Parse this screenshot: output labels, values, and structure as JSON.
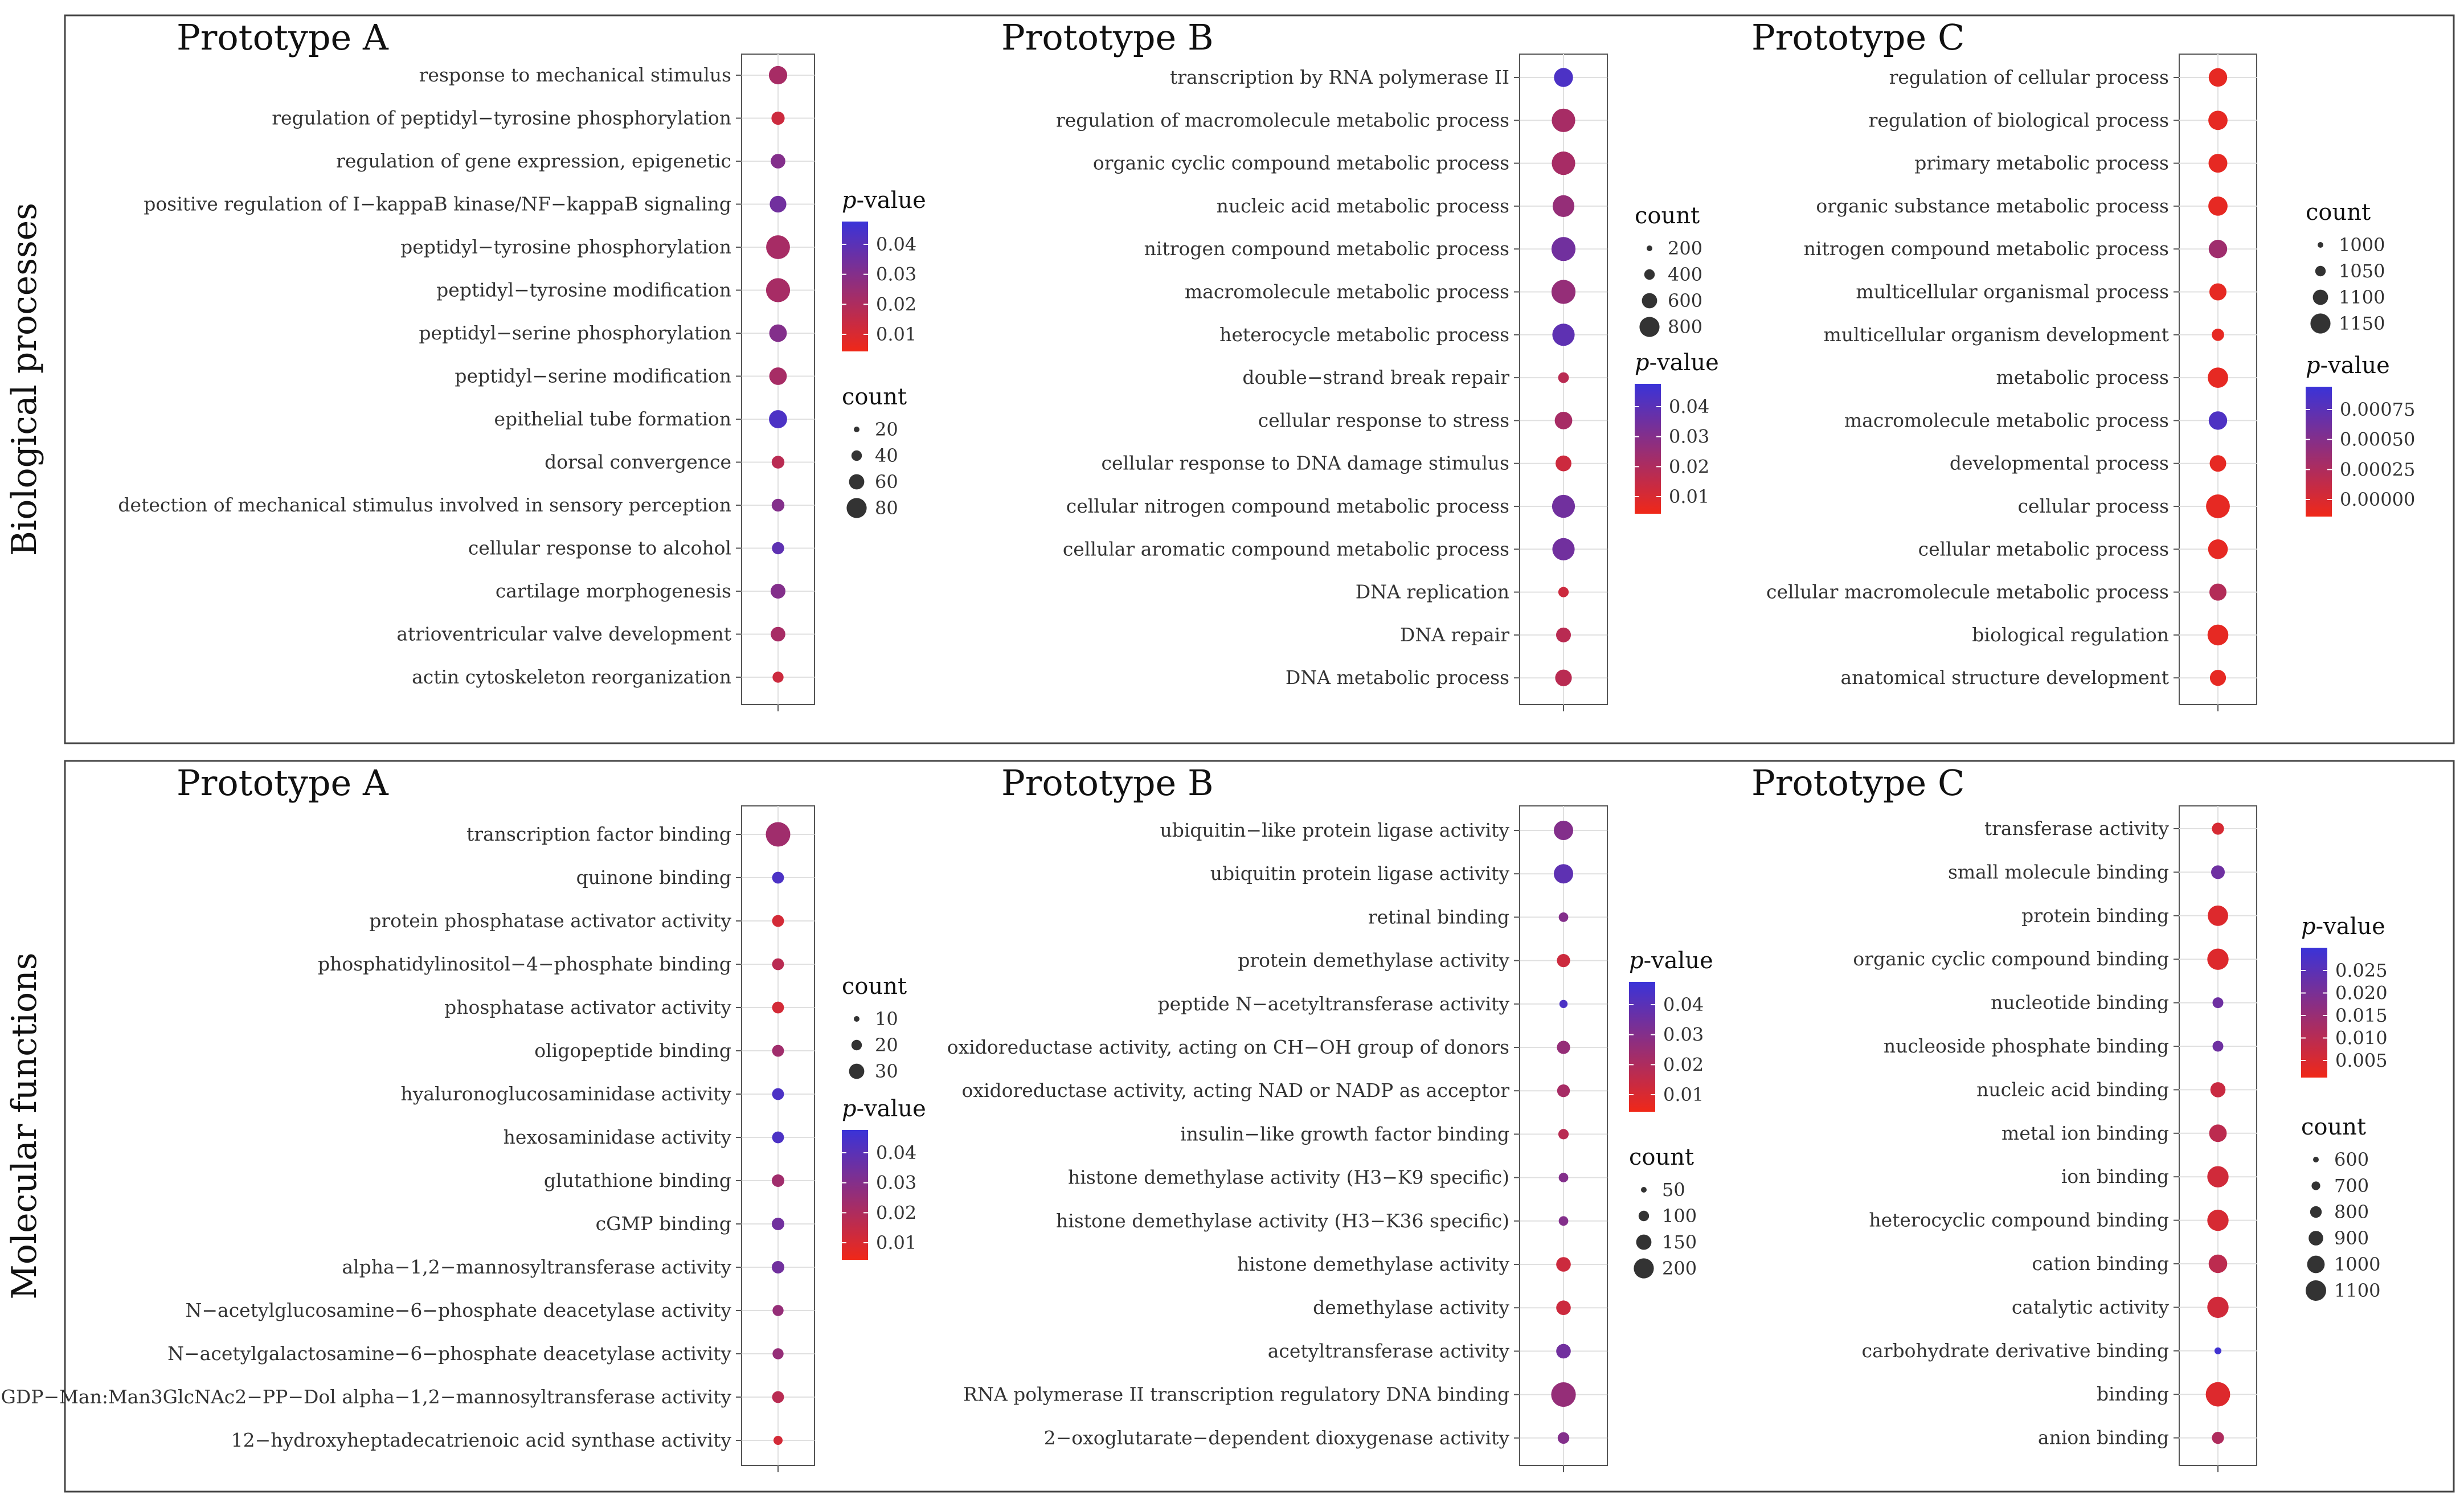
{
  "row_labels": [
    "Biological processes",
    "Molecular functions"
  ],
  "panels": [
    {
      "title": "Prototype A",
      "terms": [
        {
          "label": "response to mechanical stimulus",
          "p": 0.02,
          "count": 45
        },
        {
          "label": "regulation of peptidyl−tyrosine phosphorylation",
          "p": 0.01,
          "count": 18
        },
        {
          "label": "regulation of gene expression, epigenetic",
          "p": 0.03,
          "count": 24
        },
        {
          "label": "positive regulation of I−kappaB kinase/NF−kappaB signaling",
          "p": 0.035,
          "count": 35
        },
        {
          "label": "peptidyl−tyrosine phosphorylation",
          "p": 0.02,
          "count": 88
        },
        {
          "label": "peptidyl−tyrosine modification",
          "p": 0.02,
          "count": 90
        },
        {
          "label": "peptidyl−serine phosphorylation",
          "p": 0.03,
          "count": 40
        },
        {
          "label": "peptidyl−serine modification",
          "p": 0.02,
          "count": 40
        },
        {
          "label": "epithelial tube formation",
          "p": 0.045,
          "count": 44
        },
        {
          "label": "dorsal convergence",
          "p": 0.015,
          "count": 16
        },
        {
          "label": "detection of mechanical stimulus involved in sensory perception",
          "p": 0.03,
          "count": 16
        },
        {
          "label": "cellular response to alcohol",
          "p": 0.04,
          "count": 14
        },
        {
          "label": "cartilage morphogenesis",
          "p": 0.03,
          "count": 25
        },
        {
          "label": "atrioventricular valve development",
          "p": 0.02,
          "count": 24
        },
        {
          "label": "actin cytoskeleton reorganization",
          "p": 0.01,
          "count": 10
        }
      ],
      "legend_first": "p",
      "p_legend": {
        "title": "p-value",
        "ticks": [
          "0.04",
          "0.03",
          "0.02",
          "0.01"
        ]
      },
      "count_legend": {
        "title": "count",
        "ticks": [
          "20",
          "40",
          "60",
          "80"
        ]
      }
    },
    {
      "title": "Prototype B",
      "terms": [
        {
          "label": "transcription by RNA polymerase II",
          "p": 0.045,
          "count": 500
        },
        {
          "label": "regulation of macromolecule metabolic process",
          "p": 0.02,
          "count": 850
        },
        {
          "label": "organic cyclic compound metabolic process",
          "p": 0.02,
          "count": 850
        },
        {
          "label": "nucleic acid metabolic process",
          "p": 0.025,
          "count": 700
        },
        {
          "label": "nitrogen compound metabolic process",
          "p": 0.035,
          "count": 900
        },
        {
          "label": "macromolecule metabolic process",
          "p": 0.025,
          "count": 900
        },
        {
          "label": "heterocycle metabolic process",
          "p": 0.04,
          "count": 750
        },
        {
          "label": "double−strand break repair",
          "p": 0.015,
          "count": 90
        },
        {
          "label": "cellular response to stress",
          "p": 0.02,
          "count": 400
        },
        {
          "label": "cellular response to DNA damage stimulus",
          "p": 0.01,
          "count": 300
        },
        {
          "label": "cellular nitrogen compound metabolic process",
          "p": 0.035,
          "count": 800
        },
        {
          "label": "cellular aromatic compound metabolic process",
          "p": 0.035,
          "count": 750
        },
        {
          "label": "DNA replication",
          "p": 0.01,
          "count": 80
        },
        {
          "label": "DNA repair",
          "p": 0.015,
          "count": 250
        },
        {
          "label": "DNA metabolic process",
          "p": 0.015,
          "count": 350
        }
      ],
      "legend_first": "count",
      "p_legend": {
        "title": "p-value",
        "ticks": [
          "0.04",
          "0.03",
          "0.02",
          "0.01"
        ]
      },
      "count_legend": {
        "title": "count",
        "ticks": [
          "200",
          "400",
          "600",
          "800"
        ]
      }
    },
    {
      "title": "Prototype C",
      "terms": [
        {
          "label": "regulation of cellular process",
          "p": 5e-05,
          "count": 1060
        },
        {
          "label": "regulation of biological process",
          "p": 5e-05,
          "count": 1080
        },
        {
          "label": "primary metabolic process",
          "p": 5e-05,
          "count": 1070
        },
        {
          "label": "organic substance metabolic process",
          "p": 5e-05,
          "count": 1080
        },
        {
          "label": "nitrogen compound metabolic process",
          "p": 0.0004,
          "count": 1060
        },
        {
          "label": "multicellular organismal process",
          "p": 5e-05,
          "count": 1030
        },
        {
          "label": "multicellular organism development",
          "p": 5e-05,
          "count": 950
        },
        {
          "label": "metabolic process",
          "p": 5e-05,
          "count": 1110
        },
        {
          "label": "macromolecule metabolic process",
          "p": 0.0008,
          "count": 1060
        },
        {
          "label": "developmental process",
          "p": 5e-05,
          "count": 1020
        },
        {
          "label": "cellular process",
          "p": 5e-05,
          "count": 1210
        },
        {
          "label": "cellular metabolic process",
          "p": 5e-05,
          "count": 1090
        },
        {
          "label": "cellular macromolecule metabolic process",
          "p": 0.0003,
          "count": 1030
        },
        {
          "label": "biological regulation",
          "p": 5e-05,
          "count": 1120
        },
        {
          "label": "anatomical structure development",
          "p": 5e-05,
          "count": 1010
        }
      ],
      "legend_first": "count",
      "p_legend": {
        "title": "p-value",
        "ticks": [
          "0.00075",
          "0.00050",
          "0.00025",
          "0.00000"
        ]
      },
      "count_legend": {
        "title": "count",
        "ticks": [
          "1000",
          "1050",
          "1100",
          "1150"
        ]
      }
    },
    {
      "title": "Prototype A",
      "terms": [
        {
          "label": "transcription factor binding",
          "p": 0.022,
          "count": 38
        },
        {
          "label": "quinone binding",
          "p": 0.045,
          "count": 5
        },
        {
          "label": "protein phosphatase activator activity",
          "p": 0.008,
          "count": 5
        },
        {
          "label": "phosphatidylinositol−4−phosphate binding",
          "p": 0.015,
          "count": 5
        },
        {
          "label": "phosphatase activator activity",
          "p": 0.008,
          "count": 5
        },
        {
          "label": "oligopeptide binding",
          "p": 0.022,
          "count": 5
        },
        {
          "label": "hyaluronoglucosaminidase activity",
          "p": 0.045,
          "count": 5
        },
        {
          "label": "hexosaminidase activity",
          "p": 0.045,
          "count": 5
        },
        {
          "label": "glutathione binding",
          "p": 0.022,
          "count": 6
        },
        {
          "label": "cGMP binding",
          "p": 0.035,
          "count": 6
        },
        {
          "label": "alpha−1,2−mannosyltransferase activity",
          "p": 0.035,
          "count": 6
        },
        {
          "label": "N−acetylglucosamine−6−phosphate deacetylase activity",
          "p": 0.025,
          "count": 4
        },
        {
          "label": "N−acetylgalactosamine−6−phosphate deacetylase activity",
          "p": 0.025,
          "count": 4
        },
        {
          "label": "GDP−Man:Man3GlcNAc2−PP−Dol alpha−1,2−mannosyltransferase activity",
          "p": 0.015,
          "count": 5
        },
        {
          "label": "12−hydroxyheptadecatrienoic acid synthase activity",
          "p": 0.008,
          "count": 2
        }
      ],
      "legend_first": "count",
      "p_legend": {
        "title": "p-value",
        "ticks": [
          "0.04",
          "0.03",
          "0.02",
          "0.01"
        ]
      },
      "count_legend": {
        "title": "count",
        "ticks": [
          "10",
          "20",
          "30"
        ]
      }
    },
    {
      "title": "Prototype B",
      "terms": [
        {
          "label": "ubiquitin−like protein ligase activity",
          "p": 0.03,
          "count": 130
        },
        {
          "label": "ubiquitin protein ligase activity",
          "p": 0.04,
          "count": 130
        },
        {
          "label": "retinal binding",
          "p": 0.03,
          "count": 15
        },
        {
          "label": "protein demethylase activity",
          "p": 0.01,
          "count": 45
        },
        {
          "label": "peptide N−acetyltransferase activity",
          "p": 0.045,
          "count": 8
        },
        {
          "label": "oxidoreductase activity, acting on CH−OH group of donors",
          "p": 0.025,
          "count": 45
        },
        {
          "label": "oxidoreductase activity, acting NAD or NADP as acceptor",
          "p": 0.02,
          "count": 40
        },
        {
          "label": "insulin−like growth factor binding",
          "p": 0.015,
          "count": 20
        },
        {
          "label": "histone demethylase activity (H3−K9 specific)",
          "p": 0.03,
          "count": 15
        },
        {
          "label": "histone demethylase activity (H3−K36 specific)",
          "p": 0.03,
          "count": 15
        },
        {
          "label": "histone demethylase activity",
          "p": 0.01,
          "count": 60
        },
        {
          "label": "demethylase activity",
          "p": 0.01,
          "count": 60
        },
        {
          "label": "acetyltransferase activity",
          "p": 0.035,
          "count": 60
        },
        {
          "label": "RNA polymerase II transcription regulatory DNA binding",
          "p": 0.025,
          "count": 240
        },
        {
          "label": "2−oxoglutarate−dependent dioxygenase activity",
          "p": 0.03,
          "count": 30
        }
      ],
      "legend_first": "p",
      "p_legend": {
        "title": "p-value",
        "ticks": [
          "0.04",
          "0.03",
          "0.02",
          "0.01"
        ]
      },
      "count_legend": {
        "title": "count",
        "ticks": [
          "50",
          "100",
          "150",
          "200"
        ]
      }
    },
    {
      "title": "Prototype C",
      "terms": [
        {
          "label": "transferase activity",
          "p": 0.004,
          "count": 650
        },
        {
          "label": "small molecule binding",
          "p": 0.02,
          "count": 700
        },
        {
          "label": "protein binding",
          "p": 0.003,
          "count": 1000
        },
        {
          "label": "organic cyclic compound binding",
          "p": 0.003,
          "count": 1050
        },
        {
          "label": "nucleotide binding",
          "p": 0.02,
          "count": 620
        },
        {
          "label": "nucleoside phosphate binding",
          "p": 0.02,
          "count": 620
        },
        {
          "label": "nucleic acid binding",
          "p": 0.006,
          "count": 750
        },
        {
          "label": "metal ion binding",
          "p": 0.008,
          "count": 850
        },
        {
          "label": "ion binding",
          "p": 0.005,
          "count": 1050
        },
        {
          "label": "heterocyclic compound binding",
          "p": 0.004,
          "count": 1050
        },
        {
          "label": "cation binding",
          "p": 0.008,
          "count": 900
        },
        {
          "label": "catalytic activity",
          "p": 0.005,
          "count": 1050
        },
        {
          "label": "carbohydrate derivative binding",
          "p": 0.027,
          "count": 560
        },
        {
          "label": "binding",
          "p": 0.003,
          "count": 1250
        },
        {
          "label": "anion binding",
          "p": 0.01,
          "count": 650
        }
      ],
      "legend_first": "p",
      "p_legend": {
        "title": "p-value",
        "ticks": [
          "0.025",
          "0.020",
          "0.015",
          "0.010",
          "0.005"
        ]
      },
      "count_legend": {
        "title": "count",
        "ticks": [
          "600",
          "700",
          "800",
          "900",
          "1000",
          "1100"
        ]
      }
    }
  ],
  "chart_data": [
    {
      "type": "scatter",
      "section": "Biological processes",
      "title": "Prototype A",
      "color_by": "p-value",
      "size_by": "count",
      "p_range": [
        0,
        0.05
      ],
      "count_range": [
        0,
        100
      ]
    },
    {
      "type": "scatter",
      "section": "Biological processes",
      "title": "Prototype B",
      "color_by": "p-value",
      "size_by": "count",
      "p_range": [
        0,
        0.05
      ],
      "count_range": [
        0,
        1000
      ]
    },
    {
      "type": "scatter",
      "section": "Biological processes",
      "title": "Prototype C",
      "color_by": "p-value",
      "size_by": "count",
      "p_range": [
        0,
        0.0009
      ],
      "count_range": [
        900,
        1250
      ]
    },
    {
      "type": "scatter",
      "section": "Molecular functions",
      "title": "Prototype A",
      "color_by": "p-value",
      "size_by": "count",
      "p_range": [
        0,
        0.05
      ],
      "count_range": [
        0,
        40
      ]
    },
    {
      "type": "scatter",
      "section": "Molecular functions",
      "title": "Prototype B",
      "color_by": "p-value",
      "size_by": "count",
      "p_range": [
        0,
        0.05
      ],
      "count_range": [
        0,
        250
      ]
    },
    {
      "type": "scatter",
      "section": "Molecular functions",
      "title": "Prototype C",
      "color_by": "p-value",
      "size_by": "count",
      "p_range": [
        0,
        0.028
      ],
      "count_range": [
        550,
        1300
      ]
    }
  ],
  "colors": {
    "low_p": "#f02818",
    "high_p": "#3a33d8",
    "frame": "#444444",
    "grid": "#e0e0e0",
    "text": "#333333",
    "title": "#111111"
  }
}
